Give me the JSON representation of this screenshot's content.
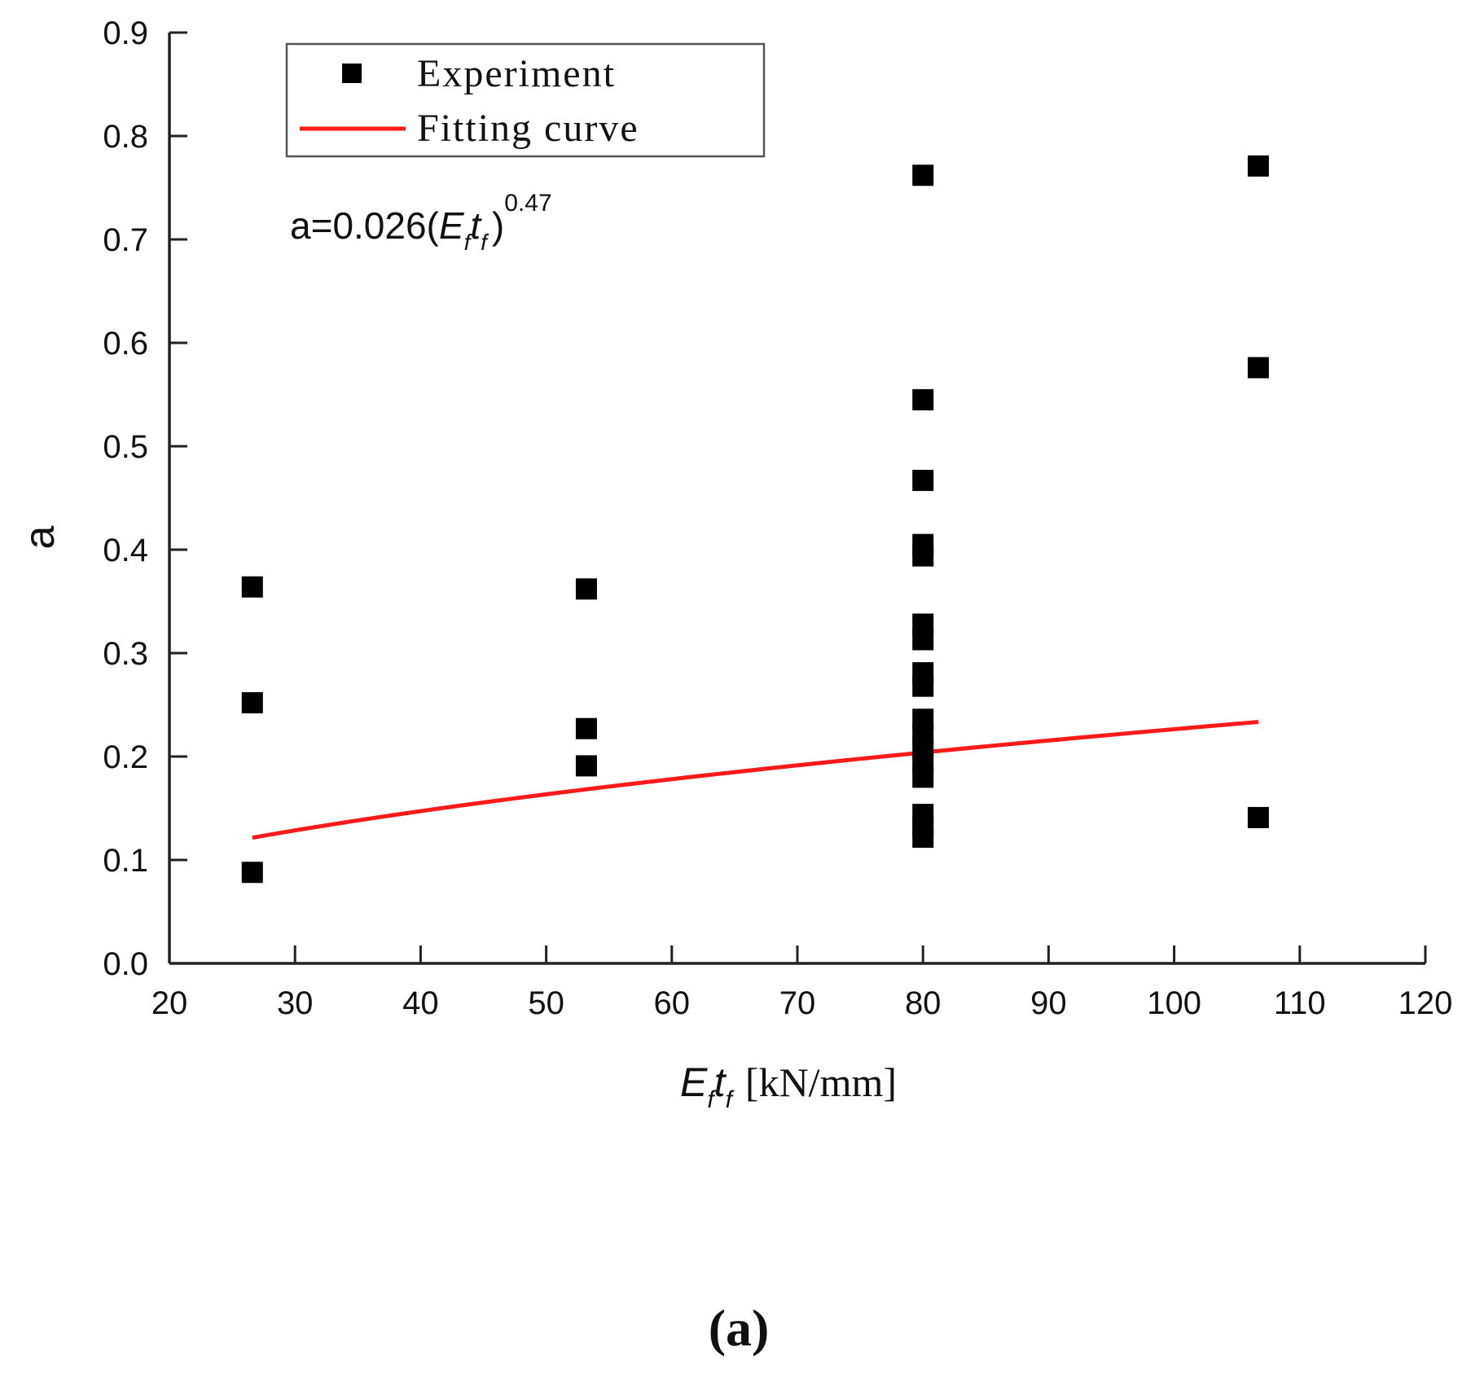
{
  "chart_data": {
    "type": "scatter",
    "title": "",
    "xlabel": "[kN/mm]",
    "xlabel_var": "E",
    "xlabel_var_sub": "f",
    "xlabel_var2": "t",
    "xlabel_var2_sub": "f",
    "ylabel": "a",
    "xlim": [
      20,
      120
    ],
    "ylim": [
      0,
      0.9
    ],
    "xticks": [
      "20",
      "30",
      "40",
      "50",
      "60",
      "70",
      "80",
      "90",
      "100",
      "110",
      "120"
    ],
    "yticks": [
      "0.0",
      "0.1",
      "0.2",
      "0.3",
      "0.4",
      "0.5",
      "0.6",
      "0.7",
      "0.8",
      "0.9"
    ],
    "series": [
      {
        "name": "Experiment",
        "kind": "scatter",
        "color": "#000000",
        "points": [
          {
            "x": 26.6,
            "y": 0.364
          },
          {
            "x": 26.6,
            "y": 0.252
          },
          {
            "x": 26.6,
            "y": 0.088
          },
          {
            "x": 53.2,
            "y": 0.362
          },
          {
            "x": 53.2,
            "y": 0.227
          },
          {
            "x": 53.2,
            "y": 0.191
          },
          {
            "x": 80,
            "y": 0.762
          },
          {
            "x": 80,
            "y": 0.545
          },
          {
            "x": 80,
            "y": 0.467
          },
          {
            "x": 80,
            "y": 0.405
          },
          {
            "x": 80,
            "y": 0.394
          },
          {
            "x": 80,
            "y": 0.328
          },
          {
            "x": 80,
            "y": 0.313
          },
          {
            "x": 80,
            "y": 0.281
          },
          {
            "x": 80,
            "y": 0.268
          },
          {
            "x": 80,
            "y": 0.236
          },
          {
            "x": 80,
            "y": 0.222
          },
          {
            "x": 80,
            "y": 0.208
          },
          {
            "x": 80,
            "y": 0.194
          },
          {
            "x": 80,
            "y": 0.18
          },
          {
            "x": 80,
            "y": 0.144
          },
          {
            "x": 80,
            "y": 0.132
          },
          {
            "x": 80,
            "y": 0.122
          },
          {
            "x": 106.7,
            "y": 0.771
          },
          {
            "x": 106.7,
            "y": 0.576
          },
          {
            "x": 106.7,
            "y": 0.141
          }
        ]
      },
      {
        "name": "Fitting curve",
        "kind": "line",
        "color": "#ff1a1a",
        "coefficient": 0.026,
        "exponent": 0.47,
        "x_range": [
          26.6,
          106.7
        ]
      }
    ],
    "legend": {
      "position": "top-left",
      "entries": [
        "Experiment",
        "Fitting curve"
      ]
    },
    "annotation": {
      "prefix": "a=0.026(",
      "var": "E",
      "var_sub": "f",
      "var2": "t",
      "var2_sub": "f",
      "suffix": ")",
      "exponent": "0.47"
    },
    "panel_label": "(a)"
  }
}
